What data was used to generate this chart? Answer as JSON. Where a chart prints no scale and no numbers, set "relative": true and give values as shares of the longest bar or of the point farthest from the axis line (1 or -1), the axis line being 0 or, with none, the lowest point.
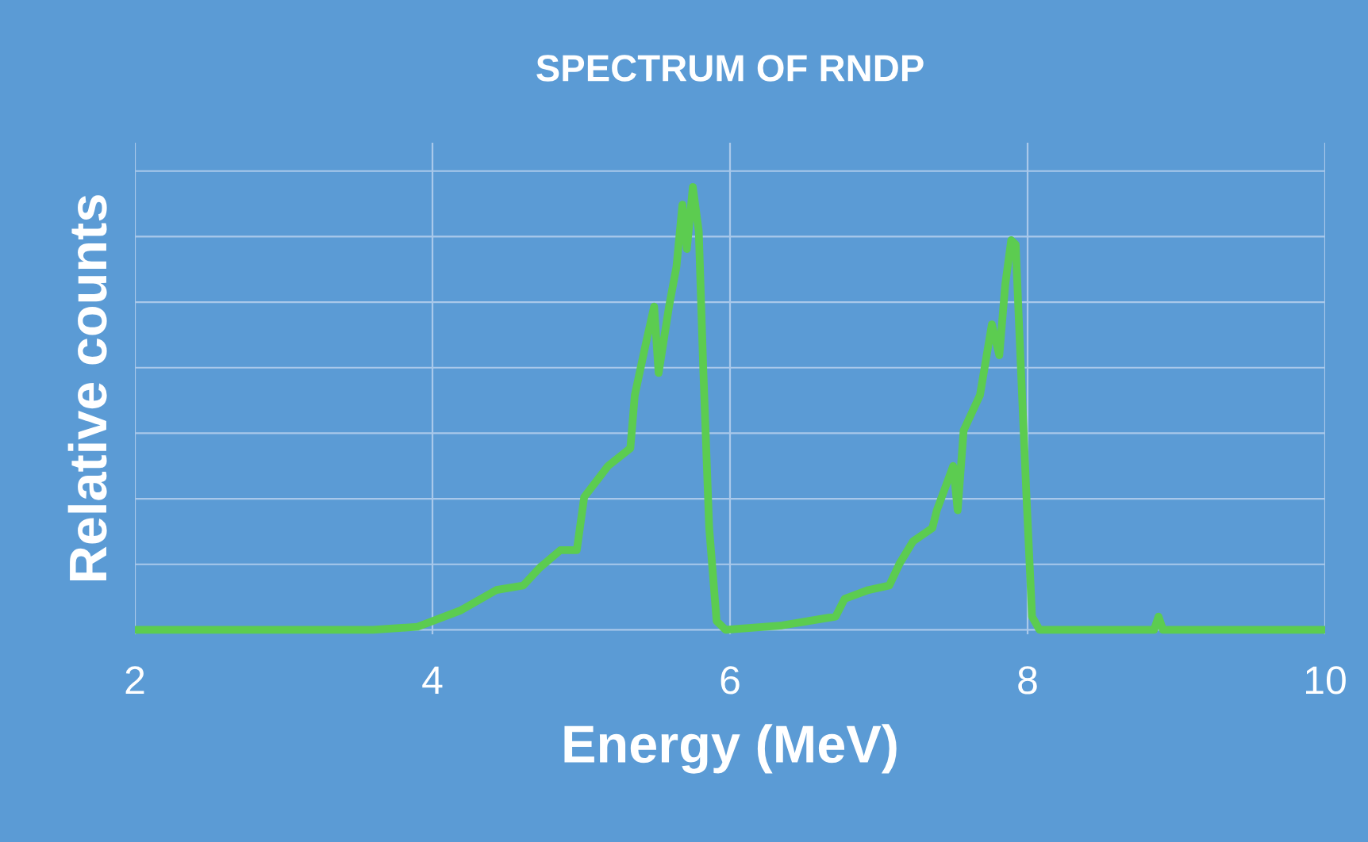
{
  "chart_data": {
    "type": "line",
    "title": "SPECTRUM OF RNDP",
    "xlabel": "Energy (MeV)",
    "ylabel": "Relative counts",
    "relative": true,
    "xlim": [
      2,
      10
    ],
    "xticks": [
      2,
      4,
      6,
      8,
      10
    ],
    "grid": true,
    "tick_labels": "x",
    "marker": "none",
    "line_style": "solid",
    "x": [
      2,
      3.6,
      3.9,
      4.19,
      4.43,
      4.61,
      4.72,
      4.86,
      4.97,
      5.02,
      5.18,
      5.33,
      5.36,
      5.43,
      5.49,
      5.52,
      5.59,
      5.64,
      5.68,
      5.71,
      5.75,
      5.79,
      5.82,
      5.86,
      5.91,
      5.97,
      6.35,
      6.71,
      6.77,
      6.93,
      7.07,
      7.14,
      7.23,
      7.36,
      7.39,
      7.5,
      7.53,
      7.57,
      7.68,
      7.71,
      7.76,
      7.81,
      7.85,
      7.89,
      7.92,
      7.95,
      7.99,
      8.03,
      8.08,
      8.85,
      8.88,
      8.91,
      10
    ],
    "series": [
      {
        "color": "#5ccc50",
        "values": [
          0,
          0,
          0.007,
          0.044,
          0.09,
          0.1,
          0.14,
          0.18,
          0.18,
          0.3,
          0.37,
          0.41,
          0.53,
          0.64,
          0.73,
          0.58,
          0.73,
          0.82,
          0.96,
          0.86,
          1,
          0.9,
          0.59,
          0.23,
          0.02,
          0,
          0.01,
          0.03,
          0.07,
          0.09,
          0.1,
          0.15,
          0.2,
          0.23,
          0.27,
          0.37,
          0.27,
          0.45,
          0.53,
          0.59,
          0.69,
          0.62,
          0.78,
          0.88,
          0.87,
          0.63,
          0.32,
          0.03,
          0,
          0,
          0.03,
          0,
          0
        ]
      }
    ]
  }
}
